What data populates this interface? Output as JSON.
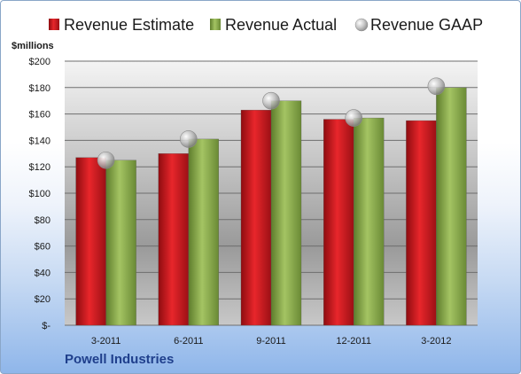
{
  "chart_data": {
    "type": "bar",
    "unit_label": "$millions",
    "company": "Powell Industries",
    "categories": [
      "3-2011",
      "6-2011",
      "9-2011",
      "12-2011",
      "3-2012"
    ],
    "series": [
      {
        "name": "Revenue Estimate",
        "type": "bar",
        "color": "#c8161c",
        "values": [
          127,
          130,
          163,
          156,
          155
        ]
      },
      {
        "name": "Revenue Actual",
        "type": "bar",
        "color": "#86a94a",
        "values": [
          125,
          141,
          170,
          157,
          180
        ]
      },
      {
        "name": "Revenue GAAP",
        "type": "marker",
        "color": "#a8a8a8",
        "values": [
          125,
          141,
          170,
          157,
          181
        ]
      }
    ],
    "y_ticks": [
      "$-",
      "$20",
      "$40",
      "$60",
      "$80",
      "$100",
      "$120",
      "$140",
      "$160",
      "$180",
      "$200"
    ],
    "ylim": [
      0,
      200
    ],
    "grid": true,
    "legend_position": "top"
  }
}
